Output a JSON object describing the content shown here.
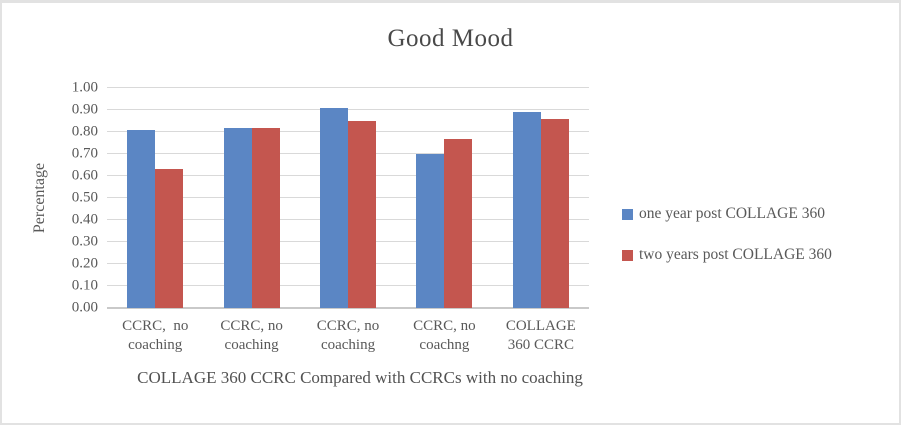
{
  "frame": {
    "background": "#ffffff",
    "border_color": "#e2e2e2"
  },
  "chart_data": {
    "type": "bar",
    "title": "Good Mood",
    "ylabel": "Percentage",
    "xlabel": "COLLAGE 360 CCRC Compared with CCRCs with no coaching",
    "ylim": [
      0,
      1.0
    ],
    "ytick_labels": [
      "0.00",
      "0.10",
      "0.20",
      "0.30",
      "0.40",
      "0.50",
      "0.60",
      "0.70",
      "0.80",
      "0.90",
      "1.00"
    ],
    "grid": true,
    "legend_position": "right",
    "categories": [
      {
        "line1": "CCRC,  no",
        "line2": "coaching"
      },
      {
        "line1": "CCRC, no",
        "line2": "coaching"
      },
      {
        "line1": "CCRC, no",
        "line2": "coaching"
      },
      {
        "line1": "CCRC, no",
        "line2": "coachng"
      },
      {
        "line1": "COLLAGE",
        "line2": "360 CCRC"
      }
    ],
    "series": [
      {
        "name": "one year post COLLAGE 360",
        "color": "#5b86c4",
        "values": [
          0.81,
          0.82,
          0.91,
          0.7,
          0.89
        ]
      },
      {
        "name": "two years post COLLAGE 360",
        "color": "#c4564f",
        "values": [
          0.63,
          0.82,
          0.85,
          0.77,
          0.86
        ]
      }
    ],
    "colors": {
      "gridline": "#d9d9d9",
      "axis_line": "#c9c9c9",
      "text": "#595959",
      "title_text": "#494949"
    }
  }
}
